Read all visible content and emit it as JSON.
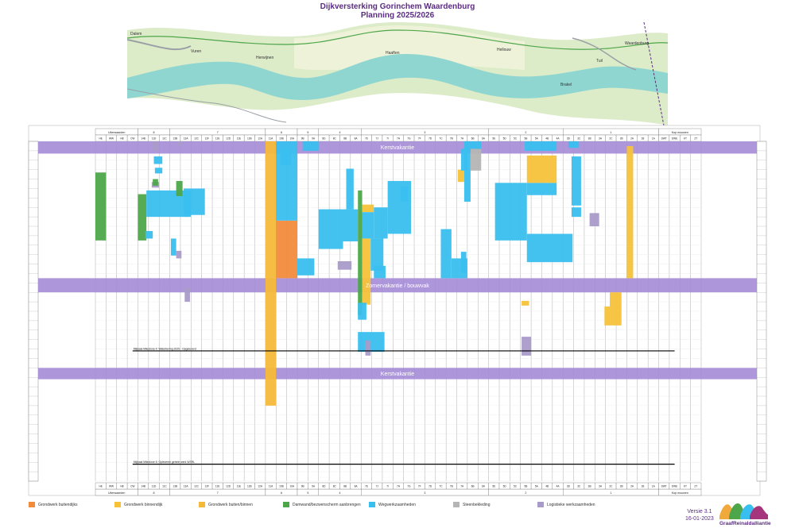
{
  "title": "Dijkversterking Gorinchem Waardenburg",
  "subtitle": "Planning 2025/2026",
  "map": {
    "places": [
      "Dalem",
      "Vuren",
      "Herwijnen",
      "Haaften",
      "Hellouw",
      "Tuil",
      "Waardenburg",
      "Brakel"
    ]
  },
  "chart_data": {
    "type": "gantt",
    "title": "Dijkversterking Gorinchem Waardenburg",
    "subtitle": "Planning 2025/2026",
    "columns": [
      "HE",
      "WW",
      "HB",
      "CW",
      "14B",
      "11D",
      "11C",
      "13B",
      "13A",
      "12C",
      "12F",
      "12E",
      "12D",
      "11E",
      "12B",
      "12A",
      "11A",
      "10B",
      "10A",
      "9B",
      "9A",
      "8D",
      "8C",
      "8B",
      "8A",
      "7E",
      "7J",
      "7I",
      "7H",
      "7G",
      "7F",
      "7D",
      "7C",
      "7B",
      "7A",
      "6B",
      "6A",
      "5E",
      "5D",
      "5C",
      "5B",
      "5A",
      "4B",
      "4A",
      "3D",
      "3C",
      "3B",
      "3A",
      "2C",
      "2B",
      "2A",
      "1B",
      "1A",
      "DWT",
      "DWE",
      "KT",
      "ZT"
    ],
    "header_groups": [
      {
        "label": "Uiterwaarden",
        "from": 0,
        "to": 4
      },
      {
        "label": "8",
        "from": 4,
        "to": 7
      },
      {
        "label": "7",
        "from": 7,
        "to": 16
      },
      {
        "label": "6",
        "from": 16,
        "to": 19
      },
      {
        "label": "5",
        "from": 19,
        "to": 21
      },
      {
        "label": "4",
        "from": 21,
        "to": 25
      },
      {
        "label": "3",
        "from": 25,
        "to": 37
      },
      {
        "label": "2",
        "from": 37,
        "to": 44
      },
      {
        "label": "1",
        "from": 44,
        "to": 53
      },
      {
        "label": "Kop mouwen",
        "from": 53,
        "to": 57
      }
    ],
    "rows": 36,
    "bands": [
      {
        "label": "Kerstvakantie",
        "from": 0,
        "to": 1.3
      },
      {
        "label": "Zomervakantie / bouwvak",
        "from": 14.5,
        "to": 16
      },
      {
        "label": "Kerstvakantie",
        "from": 24,
        "to": 25.2
      }
    ],
    "milestones": [
      {
        "label": "Mijlpaal Milestone 4: Waterkering 2025 - Opgeleverd",
        "row": 22.2,
        "from": 3.5,
        "to": 54.5
      },
      {
        "label": "Mijlpaal Milestone 5: Opleveren gehele werk WSRL",
        "row": 34.2,
        "from": 3.5,
        "to": 54.5
      }
    ],
    "legend": [
      {
        "key": "gb",
        "label": "Grondwerk buitendijks",
        "color": "#f28c3c"
      },
      {
        "key": "gbi",
        "label": "Grondwerk binnendijk",
        "color": "#f7c23a"
      },
      {
        "key": "gbb",
        "label": "Grondwerk buiten/binnen",
        "color": "#f5b93a"
      },
      {
        "key": "dw",
        "label": "Damwand/bezwenscherm aanbrengen",
        "color": "#4ea64a"
      },
      {
        "key": "ww",
        "label": "Wegwerkzaamheden",
        "color": "#39bfef"
      },
      {
        "key": "sb",
        "label": "Steenbekleding",
        "color": "#b5b5b5"
      },
      {
        "key": "lw",
        "label": "Logistieke werkzaamheden",
        "color": "#a99bc9"
      }
    ],
    "tasks": [
      {
        "type": "dw",
        "c0": 0,
        "c1": 1,
        "r0": 3.3,
        "r1": 10.5
      },
      {
        "type": "dw",
        "c0": 4,
        "c1": 4.8,
        "r0": 5.6,
        "r1": 10.5
      },
      {
        "type": "ww",
        "c0": 4.8,
        "c1": 9,
        "r0": 5.2,
        "r1": 8.0
      },
      {
        "type": "dw",
        "c0": 7.6,
        "c1": 8.2,
        "r0": 4.2,
        "r1": 5.8
      },
      {
        "type": "ww",
        "c0": 8.3,
        "c1": 10.3,
        "r0": 5.0,
        "r1": 7.8
      },
      {
        "type": "ww",
        "c0": 5.5,
        "c1": 6.3,
        "r0": 1.6,
        "r1": 2.4
      },
      {
        "type": "ww",
        "c0": 5.6,
        "c1": 6.3,
        "r0": 2.8,
        "r1": 3.4
      },
      {
        "type": "lw",
        "c0": 5.4,
        "c1": 5.9,
        "r0": 0,
        "r1": 1
      },
      {
        "type": "lw",
        "c0": 5.3,
        "c1": 6.0,
        "r0": 4.3,
        "r1": 4.9
      },
      {
        "type": "dw",
        "c0": 5.4,
        "c1": 5.9,
        "r0": 4.0,
        "r1": 4.7
      },
      {
        "type": "ww",
        "c0": 4.7,
        "c1": 5.4,
        "r0": 9.5,
        "r1": 10.3
      },
      {
        "type": "ww",
        "c0": 7.1,
        "c1": 7.6,
        "r0": 10.3,
        "r1": 12.1
      },
      {
        "type": "lw",
        "c0": 7.6,
        "c1": 8.1,
        "r0": 11.6,
        "r1": 12.4
      },
      {
        "type": "lw",
        "c0": 8.4,
        "c1": 8.9,
        "r0": 15.5,
        "r1": 17
      },
      {
        "type": "lw",
        "c0": 7.7,
        "c1": 8.1,
        "r0": 0,
        "r1": 0.5
      },
      {
        "type": "ww",
        "c0": 8.4,
        "c1": 8.8,
        "r0": 6.8,
        "r1": 8.0
      },
      {
        "type": "gbb",
        "c0": 16,
        "c1": 17,
        "r0": 0,
        "r1": 28
      },
      {
        "type": "gb",
        "c0": 17,
        "c1": 19,
        "r0": 8.4,
        "r1": 14.5
      },
      {
        "type": "ww",
        "c0": 17,
        "c1": 19,
        "r0": 0,
        "r1": 8.4
      },
      {
        "type": "ww",
        "c0": 17.4,
        "c1": 18.4,
        "r0": 0.8,
        "r1": 2.5
      },
      {
        "type": "ww",
        "c0": 19,
        "c1": 20.6,
        "r0": 12.4,
        "r1": 14.2
      },
      {
        "type": "ww",
        "c0": 19.5,
        "c1": 21,
        "r0": 0,
        "r1": 1
      },
      {
        "type": "ww",
        "c0": 21,
        "c1": 23.3,
        "r0": 7.2,
        "r1": 11.4
      },
      {
        "type": "ww",
        "c0": 23.3,
        "c1": 24.7,
        "r0": 7.2,
        "r1": 10.6
      },
      {
        "type": "ww",
        "c0": 23.6,
        "c1": 24.3,
        "r0": 2.9,
        "r1": 7.2
      },
      {
        "type": "dw",
        "c0": 24.7,
        "c1": 25.1,
        "r0": 5.2,
        "r1": 18.4
      },
      {
        "type": "gbi",
        "c0": 25.1,
        "c1": 26.2,
        "r0": 6.7,
        "r1": 7.5
      },
      {
        "type": "ww",
        "c0": 25.1,
        "c1": 26.2,
        "r0": 7.5,
        "r1": 10.3
      },
      {
        "type": "gbi",
        "c0": 25.1,
        "c1": 25.9,
        "r0": 10.3,
        "r1": 17.3
      },
      {
        "type": "ww",
        "c0": 25.9,
        "c1": 27.1,
        "r0": 10.3,
        "r1": 13.7
      },
      {
        "type": "ww",
        "c0": 26.2,
        "c1": 27.5,
        "r0": 7.0,
        "r1": 10.3
      },
      {
        "type": "ww",
        "c0": 27.5,
        "c1": 28.5,
        "r0": 4.2,
        "r1": 9.8
      },
      {
        "type": "ww",
        "c0": 28.5,
        "c1": 29.7,
        "r0": 4.2,
        "r1": 9.8
      },
      {
        "type": "ww",
        "c0": 28.7,
        "c1": 29.4,
        "r0": 4.8,
        "r1": 6.4
      },
      {
        "type": "ww",
        "c0": 26.2,
        "c1": 27.3,
        "r0": 13.2,
        "r1": 14.5
      },
      {
        "type": "lw",
        "c0": 22.8,
        "c1": 24.1,
        "r0": 12.7,
        "r1": 13.6
      },
      {
        "type": "ww",
        "c0": 24.7,
        "c1": 27.2,
        "r0": 20.2,
        "r1": 22.3
      },
      {
        "type": "lw",
        "c0": 25.4,
        "c1": 25.9,
        "r0": 21.1,
        "r1": 22.7
      },
      {
        "type": "ww",
        "c0": 24.7,
        "c1": 25.5,
        "r0": 17.1,
        "r1": 18.9
      },
      {
        "type": "ww",
        "c0": 32.5,
        "c1": 33.5,
        "r0": 9.3,
        "r1": 14.5
      },
      {
        "type": "ww",
        "c0": 33.5,
        "c1": 35,
        "r0": 12.4,
        "r1": 14.5
      },
      {
        "type": "gbi",
        "c0": 34.1,
        "c1": 34.7,
        "r0": 3.0,
        "r1": 4.3
      },
      {
        "type": "ww",
        "c0": 34.7,
        "c1": 35.3,
        "r0": 0,
        "r1": 6.4
      },
      {
        "type": "ww",
        "c0": 34.4,
        "c1": 34.9,
        "r0": 11.7,
        "r1": 13.9
      },
      {
        "type": "ww",
        "c0": 34.4,
        "c1": 35.0,
        "r0": 0.8,
        "r1": 3.1
      },
      {
        "type": "sb",
        "c0": 35.3,
        "c1": 36.3,
        "r0": 0.8,
        "r1": 3.1
      },
      {
        "type": "ww",
        "c0": 35.3,
        "c1": 36.3,
        "r0": 0,
        "r1": 0.8
      },
      {
        "type": "ww",
        "c0": 37.6,
        "c1": 40.6,
        "r0": 4.4,
        "r1": 10.5
      },
      {
        "type": "ww",
        "c0": 40.6,
        "c1": 43.4,
        "r0": 4.4,
        "r1": 5.7
      },
      {
        "type": "gbi",
        "c0": 40.6,
        "c1": 43.4,
        "r0": 1.5,
        "r1": 4.4
      },
      {
        "type": "ww",
        "c0": 40.6,
        "c1": 44.9,
        "r0": 9.8,
        "r1": 12.8
      },
      {
        "type": "ww",
        "c0": 40.4,
        "c1": 43.4,
        "r0": 0,
        "r1": 1
      },
      {
        "type": "gbi",
        "c0": 40.1,
        "c1": 40.8,
        "r0": 16.9,
        "r1": 17.4
      },
      {
        "type": "lw",
        "c0": 40.1,
        "c1": 41.0,
        "r0": 20.7,
        "r1": 22.7
      },
      {
        "type": "ww",
        "c0": 44.8,
        "c1": 45.7,
        "r0": 1.6,
        "r1": 6.8
      },
      {
        "type": "ww",
        "c0": 44.8,
        "c1": 45.7,
        "r0": 7.0,
        "r1": 8.0
      },
      {
        "type": "ww",
        "c0": 44.5,
        "c1": 45.5,
        "r0": 0,
        "r1": 0.7
      },
      {
        "type": "lw",
        "c0": 46.5,
        "c1": 47.4,
        "r0": 7.6,
        "r1": 9.0
      },
      {
        "type": "gbi",
        "c0": 50,
        "c1": 50.6,
        "r0": 0.5,
        "r1": 14.5
      },
      {
        "type": "gbi",
        "c0": 48.4,
        "c1": 49.5,
        "r0": 16.0,
        "r1": 19.5
      },
      {
        "type": "gbi",
        "c0": 47.9,
        "c1": 48.4,
        "r0": 17.5,
        "r1": 19.5
      }
    ]
  },
  "version": {
    "label": "Versie 3.1",
    "date": "16-01-2023"
  },
  "logo": {
    "text": "GraafReinaldalliantie"
  }
}
